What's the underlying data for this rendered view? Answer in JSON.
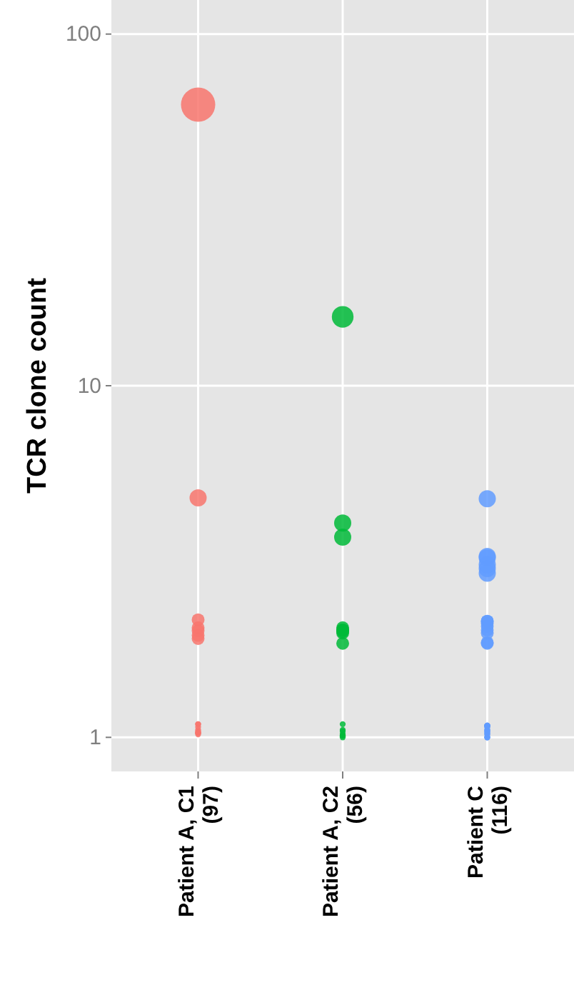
{
  "chart_data": {
    "type": "bubble",
    "ylabel": "TCR clone count",
    "log": "y",
    "grid": true,
    "marker": "circle",
    "categories": [
      "Patient A, C1\n(97)",
      "Patient A, C2\n(56)",
      "Patient C\n(116)"
    ],
    "ylim": [
      0.8,
      125
    ],
    "yticks": [
      1,
      10,
      100
    ],
    "series": [
      {
        "color": "#f8766d",
        "x": [
          "Patient A, C1\n(97)",
          "Patient A, C1\n(97)",
          "Patient A, C1\n(97)",
          "Patient A, C1\n(97)",
          "Patient A, C1\n(97)",
          "Patient A, C1\n(97)",
          "Patient A, C1\n(97)",
          "Patient A, C1\n(97)",
          "Patient A, C1\n(97)",
          "Patient A, C1\n(97)",
          "Patient A, C1\n(97)",
          "Patient A, C1\n(97)",
          "Patient A, C1\n(97)",
          "Patient A, C1\n(97)",
          "Patient A, C1\n(97)",
          "Patient A, C1\n(97)"
        ],
        "values": [
          63,
          4.8,
          2.05,
          1.91,
          2.01,
          1.95,
          2.16,
          1.03,
          1.05,
          1.04,
          1.09,
          1.02,
          1.07,
          1.09,
          1.03,
          1.03
        ],
        "sizes": [
          1,
          0.25,
          0.14,
          0.14,
          0.14,
          0.14,
          0.14,
          0.03,
          0.03,
          0.03,
          0.03,
          0.03,
          0.03,
          0.03,
          0.03,
          0.03
        ]
      },
      {
        "color": "#00ba38",
        "x": [
          "Patient A, C2\n(56)",
          "Patient A, C2\n(56)",
          "Patient A, C2\n(56)",
          "Patient A, C2\n(56)",
          "Patient A, C2\n(56)",
          "Patient A, C2\n(56)",
          "Patient A, C2\n(56)",
          "Patient A, C2\n(56)",
          "Patient A, C2\n(56)",
          "Patient A, C2\n(56)",
          "Patient A, C2\n(56)",
          "Patient A, C2\n(56)",
          "Patient A, C2\n(56)",
          "Patient A, C2\n(56)",
          "Patient A, C2\n(56)",
          "Patient A, C2\n(56)"
        ],
        "values": [
          15.7,
          3.71,
          4.07,
          1.85,
          2.05,
          2.02,
          2.02,
          2.0,
          1.98,
          1.05,
          1.02,
          1.01,
          1.0,
          1.01,
          1.09,
          1.04
        ],
        "sizes": [
          0.4,
          0.25,
          0.25,
          0.14,
          0.14,
          0.14,
          0.14,
          0.14,
          0.14,
          0.03,
          0.03,
          0.03,
          0.03,
          0.03,
          0.03,
          0.03
        ]
      },
      {
        "color": "#619cff",
        "x": [
          "Patient C\n(116)",
          "Patient C\n(116)",
          "Patient C\n(116)",
          "Patient C\n(116)",
          "Patient C\n(116)",
          "Patient C\n(116)",
          "Patient C\n(116)",
          "Patient C\n(116)",
          "Patient C\n(116)",
          "Patient C\n(116)",
          "Patient C\n(116)",
          "Patient C\n(116)",
          "Patient C\n(116)",
          "Patient C\n(116)",
          "Patient C\n(116)",
          "Patient C\n(116)",
          "Patient C\n(116)",
          "Patient C\n(116)",
          "Patient C\n(116)",
          "Patient C\n(116)",
          "Patient C\n(116)",
          "Patient C\n(116)",
          "Patient C\n(116)",
          "Patient C\n(116)",
          "Patient C\n(116)",
          "Patient C\n(116)",
          "Patient C\n(116)",
          "Patient C\n(116)",
          "Patient C\n(116)",
          "Patient C\n(116)",
          "Patient C\n(116)"
        ],
        "values": [
          4.77,
          2.93,
          3.27,
          3.02,
          3.1,
          3.24,
          2.14,
          2.11,
          1.85,
          1.86,
          1.98,
          2.14,
          2.07,
          2.02,
          1.03,
          1.04,
          1.05,
          1.08,
          1.08,
          1.0,
          1.08,
          1.05,
          1.02,
          1.08,
          1.04,
          1.07,
          1.0,
          1.08,
          1.0,
          1.02,
          1.07
        ],
        "sizes": [
          0.25,
          0.25,
          0.25,
          0.25,
          0.25,
          0.25,
          0.14,
          0.14,
          0.14,
          0.14,
          0.14,
          0.14,
          0.14,
          0.14,
          0.03,
          0.03,
          0.03,
          0.03,
          0.03,
          0.03,
          0.03,
          0.03,
          0.03,
          0.03,
          0.03,
          0.03,
          0.03,
          0.03,
          0.03,
          0.03,
          0.03
        ]
      }
    ]
  }
}
